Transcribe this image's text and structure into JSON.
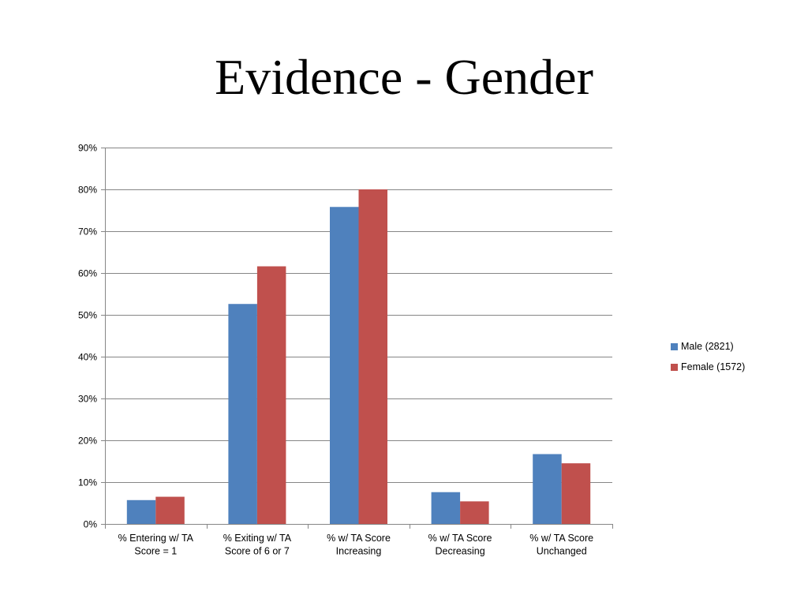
{
  "slide": {
    "title": "Evidence - Gender"
  },
  "colors": {
    "male": "#4f81bd",
    "female": "#c0504d",
    "grid": "#868686",
    "axis": "#868686"
  },
  "chart_data": {
    "type": "bar",
    "title": "",
    "xlabel": "",
    "ylabel": "",
    "ylim": [
      0,
      90
    ],
    "yticks": [
      "0%",
      "10%",
      "20%",
      "30%",
      "40%",
      "50%",
      "60%",
      "70%",
      "80%",
      "90%"
    ],
    "grid": true,
    "legend_position": "right",
    "categories": [
      [
        "% Entering w/ TA",
        "Score = 1"
      ],
      [
        "% Exiting w/ TA",
        "Score of 6 or 7"
      ],
      [
        "% w/ TA Score",
        "Increasing"
      ],
      [
        "% w/ TA Score",
        "Decreasing"
      ],
      [
        "% w/ TA Score",
        "Unchanged"
      ]
    ],
    "series": [
      {
        "name": "Male (2821)",
        "values": [
          5.7,
          52.6,
          75.8,
          7.6,
          16.7
        ]
      },
      {
        "name": "Female (1572)",
        "values": [
          6.5,
          61.6,
          80.0,
          5.4,
          14.5
        ]
      }
    ]
  }
}
